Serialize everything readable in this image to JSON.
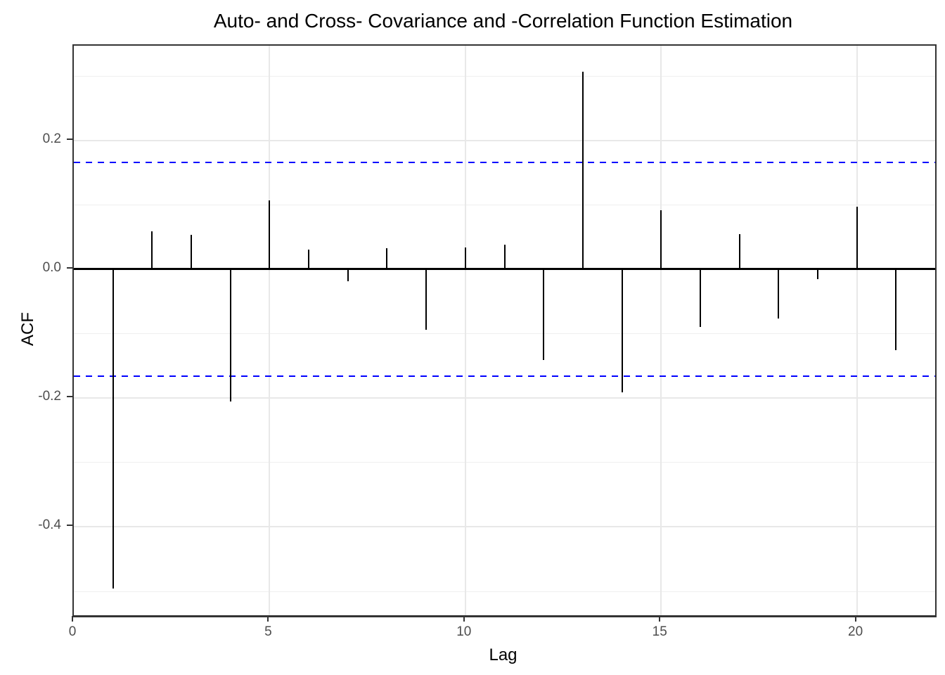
{
  "title": "Auto- and Cross- Covariance and -Correlation Function Estimation",
  "chart_data": {
    "type": "bar",
    "subtype": "acf-stem-plot",
    "title": "Auto- and Cross- Covariance and -Correlation Function Estimation",
    "xlabel": "Lag",
    "ylabel": "ACF",
    "x": [
      1,
      2,
      3,
      4,
      5,
      6,
      7,
      8,
      9,
      10,
      11,
      12,
      13,
      14,
      15,
      16,
      17,
      18,
      19,
      20,
      21
    ],
    "values": [
      -0.496,
      0.059,
      0.053,
      -0.205,
      0.107,
      0.03,
      -0.019,
      0.033,
      -0.094,
      0.034,
      0.038,
      -0.141,
      0.307,
      -0.191,
      0.092,
      -0.09,
      0.054,
      -0.077,
      -0.015,
      0.097,
      -0.126
    ],
    "confidence_bounds": {
      "upper": 0.166,
      "lower": -0.166,
      "line_style": "dashed",
      "color": "#0000FF"
    },
    "xlim": [
      0,
      22
    ],
    "ylim": [
      -0.537,
      0.347
    ],
    "x_ticks": [
      {
        "value": 0,
        "label": "0"
      },
      {
        "value": 5,
        "label": "5"
      },
      {
        "value": 10,
        "label": "10"
      },
      {
        "value": 15,
        "label": "15"
      },
      {
        "value": 20,
        "label": "20"
      }
    ],
    "y_ticks": [
      {
        "value": 0.2,
        "label": "0.2"
      },
      {
        "value": 0.0,
        "label": "0.0"
      },
      {
        "value": -0.2,
        "label": "-0.2"
      },
      {
        "value": -0.4,
        "label": "-0.4"
      }
    ],
    "y_minor_gridlines": [
      0.3,
      0.1,
      -0.1,
      -0.3,
      -0.5
    ],
    "x_major_gridlines": [
      5,
      10,
      15,
      20
    ],
    "grid": true,
    "legend": "none",
    "colors": {
      "spike": "#000000",
      "zero_line": "#000000",
      "ci_line": "#0000FF",
      "grid_major": "#e8e8e8",
      "grid_minor": "#efefef",
      "panel_border": "#333333",
      "tick_text": "#4d4d4d",
      "background": "#ffffff"
    }
  }
}
